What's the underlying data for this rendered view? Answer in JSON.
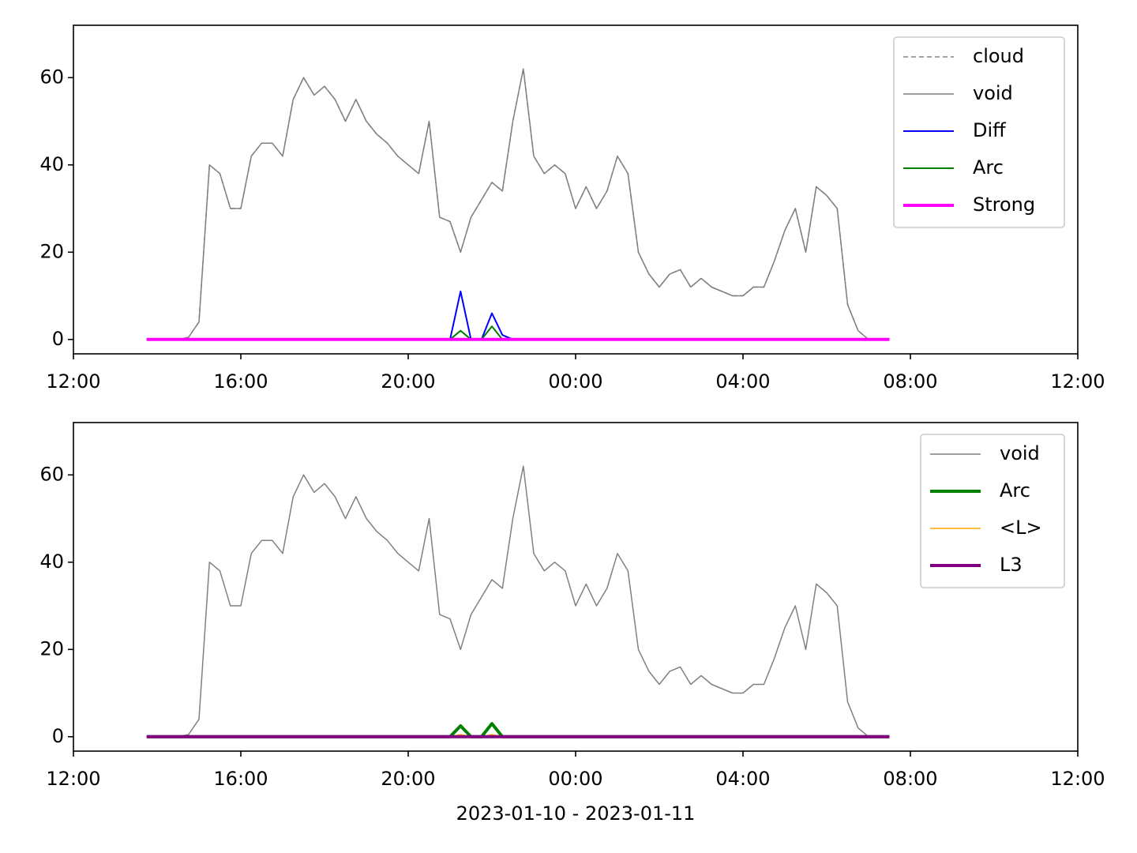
{
  "chart_data": [
    {
      "type": "line",
      "x": [
        13.75,
        14,
        14.25,
        14.5,
        14.75,
        15,
        15.25,
        15.5,
        15.75,
        16,
        16.25,
        16.5,
        16.75,
        17,
        17.25,
        17.5,
        17.75,
        18,
        18.25,
        18.5,
        18.75,
        19,
        19.25,
        19.5,
        19.75,
        20,
        20.25,
        20.5,
        20.75,
        21,
        21.25,
        21.5,
        21.75,
        22,
        22.25,
        22.5,
        22.75,
        23,
        23.25,
        23.5,
        23.75,
        24,
        24.25,
        24.5,
        24.75,
        25,
        25.25,
        25.5,
        25.75,
        26,
        26.25,
        26.5,
        26.75,
        27,
        27.25,
        27.5,
        27.75,
        28,
        28.25,
        28.5,
        28.75,
        29,
        29.25,
        29.5,
        29.75,
        30,
        30.25,
        30.5,
        30.75,
        31,
        31.25,
        31.5
      ],
      "series": [
        {
          "name": "cloud",
          "color": "#808080",
          "linewidth": 1.5,
          "linestyle": "dashed",
          "values": [
            0,
            0,
            0,
            0,
            0.5,
            4,
            40,
            38,
            30,
            30,
            42,
            45,
            45,
            42,
            55,
            60,
            56,
            58,
            55,
            50,
            55,
            50,
            47,
            45,
            42,
            40,
            38,
            50,
            28,
            27,
            20,
            28,
            32,
            36,
            34,
            50,
            62,
            42,
            38,
            40,
            38,
            30,
            35,
            30,
            34,
            42,
            38,
            20,
            15,
            12,
            15,
            16,
            12,
            14,
            12,
            11,
            10,
            10,
            12,
            12,
            18,
            25,
            30,
            20,
            35,
            33,
            30,
            8,
            2,
            0,
            0,
            0
          ]
        },
        {
          "name": "void",
          "color": "#808080",
          "linewidth": 1.5,
          "linestyle": "solid",
          "values": [
            0,
            0,
            0,
            0,
            0.5,
            4,
            40,
            38,
            30,
            30,
            42,
            45,
            45,
            42,
            55,
            60,
            56,
            58,
            55,
            50,
            55,
            50,
            47,
            45,
            42,
            40,
            38,
            50,
            28,
            27,
            20,
            28,
            32,
            36,
            34,
            50,
            62,
            42,
            38,
            40,
            38,
            30,
            35,
            30,
            34,
            42,
            38,
            20,
            15,
            12,
            15,
            16,
            12,
            14,
            12,
            11,
            10,
            10,
            12,
            12,
            18,
            25,
            30,
            20,
            35,
            33,
            30,
            8,
            2,
            0,
            0,
            0
          ]
        },
        {
          "name": "Diff",
          "color": "#0000ff",
          "linewidth": 2,
          "linestyle": "solid",
          "values": [
            0,
            0,
            0,
            0,
            0,
            0,
            0,
            0,
            0,
            0,
            0,
            0,
            0,
            0,
            0,
            0,
            0,
            0,
            0,
            0,
            0,
            0,
            0,
            0,
            0,
            0,
            0,
            0,
            0,
            0,
            11,
            0,
            0,
            6,
            1,
            0,
            0,
            0,
            0,
            0,
            0,
            0,
            0,
            0,
            0,
            0,
            0,
            0,
            0,
            0,
            0,
            0,
            0,
            0,
            0,
            0,
            0,
            0,
            0,
            0,
            0,
            0,
            0,
            0,
            0,
            0,
            0,
            0,
            0,
            0,
            0,
            0
          ]
        },
        {
          "name": "Arc",
          "color": "#008000",
          "linewidth": 2,
          "linestyle": "solid",
          "values": [
            0,
            0,
            0,
            0,
            0,
            0,
            0,
            0,
            0,
            0,
            0,
            0,
            0,
            0,
            0,
            0,
            0,
            0,
            0,
            0,
            0,
            0,
            0,
            0,
            0,
            0,
            0,
            0,
            0,
            0,
            2,
            0,
            0,
            3,
            0,
            0,
            0,
            0,
            0,
            0,
            0,
            0,
            0,
            0,
            0,
            0,
            0,
            0,
            0,
            0,
            0,
            0,
            0,
            0,
            0,
            0,
            0,
            0,
            0,
            0,
            0,
            0,
            0,
            0,
            0,
            0,
            0,
            0,
            0,
            0,
            0,
            0
          ]
        },
        {
          "name": "Strong",
          "color": "#ff00ff",
          "linewidth": 4,
          "linestyle": "solid",
          "values": [
            0,
            0,
            0,
            0,
            0,
            0,
            0,
            0,
            0,
            0,
            0,
            0,
            0,
            0,
            0,
            0,
            0,
            0,
            0,
            0,
            0,
            0,
            0,
            0,
            0,
            0,
            0,
            0,
            0,
            0,
            0,
            0,
            0,
            0,
            0,
            0,
            0,
            0,
            0,
            0,
            0,
            0,
            0,
            0,
            0,
            0,
            0,
            0,
            0,
            0,
            0,
            0,
            0,
            0,
            0,
            0,
            0,
            0,
            0,
            0,
            0,
            0,
            0,
            0,
            0,
            0,
            0,
            0,
            0,
            0,
            0,
            0
          ]
        }
      ],
      "xlim": [
        12,
        36
      ],
      "xticks": [
        {
          "value": 12,
          "label": "12:00"
        },
        {
          "value": 16,
          "label": "16:00"
        },
        {
          "value": 20,
          "label": "20:00"
        },
        {
          "value": 24,
          "label": "00:00"
        },
        {
          "value": 28,
          "label": "04:00"
        },
        {
          "value": 32,
          "label": "08:00"
        },
        {
          "value": 36,
          "label": "12:00"
        }
      ],
      "ylim": [
        -3.3,
        72
      ],
      "yticks": [
        0,
        20,
        40,
        60
      ],
      "legend": "upper right"
    },
    {
      "type": "line",
      "x": [
        13.75,
        14,
        14.25,
        14.5,
        14.75,
        15,
        15.25,
        15.5,
        15.75,
        16,
        16.25,
        16.5,
        16.75,
        17,
        17.25,
        17.5,
        17.75,
        18,
        18.25,
        18.5,
        18.75,
        19,
        19.25,
        19.5,
        19.75,
        20,
        20.25,
        20.5,
        20.75,
        21,
        21.25,
        21.5,
        21.75,
        22,
        22.25,
        22.5,
        22.75,
        23,
        23.25,
        23.5,
        23.75,
        24,
        24.25,
        24.5,
        24.75,
        25,
        25.25,
        25.5,
        25.75,
        26,
        26.25,
        26.5,
        26.75,
        27,
        27.25,
        27.5,
        27.75,
        28,
        28.25,
        28.5,
        28.75,
        29,
        29.25,
        29.5,
        29.75,
        30,
        30.25,
        30.5,
        30.75,
        31,
        31.25,
        31.5
      ],
      "series": [
        {
          "name": "void",
          "color": "#808080",
          "linewidth": 1.5,
          "linestyle": "solid",
          "values": [
            0,
            0,
            0,
            0,
            0.5,
            4,
            40,
            38,
            30,
            30,
            42,
            45,
            45,
            42,
            55,
            60,
            56,
            58,
            55,
            50,
            55,
            50,
            47,
            45,
            42,
            40,
            38,
            50,
            28,
            27,
            20,
            28,
            32,
            36,
            34,
            50,
            62,
            42,
            38,
            40,
            38,
            30,
            35,
            30,
            34,
            42,
            38,
            20,
            15,
            12,
            15,
            16,
            12,
            14,
            12,
            11,
            10,
            10,
            12,
            12,
            18,
            25,
            30,
            20,
            35,
            33,
            30,
            8,
            2,
            0,
            0,
            0
          ]
        },
        {
          "name": "Arc",
          "color": "#008000",
          "linewidth": 4,
          "linestyle": "solid",
          "values": [
            0,
            0,
            0,
            0,
            0,
            0,
            0,
            0,
            0,
            0,
            0,
            0,
            0,
            0,
            0,
            0,
            0,
            0,
            0,
            0,
            0,
            0,
            0,
            0,
            0,
            0,
            0,
            0,
            0,
            0,
            2.5,
            0,
            0,
            3,
            0,
            0,
            0,
            0,
            0,
            0,
            0,
            0,
            0,
            0,
            0,
            0,
            0,
            0,
            0,
            0,
            0,
            0,
            0,
            0,
            0,
            0,
            0,
            0,
            0,
            0,
            0,
            0,
            0,
            0,
            0,
            0,
            0,
            0,
            0,
            0,
            0,
            0
          ]
        },
        {
          "name": "<L>",
          "color": "#ffa500",
          "linewidth": 1.5,
          "linestyle": "solid",
          "values": [
            0,
            0,
            0,
            0,
            0,
            0,
            0,
            0,
            0,
            0,
            0,
            0,
            0,
            0,
            0,
            0,
            0,
            0,
            0,
            0,
            0,
            0,
            0,
            0,
            0,
            0,
            0,
            0,
            0,
            0,
            0.5,
            0,
            0,
            0.5,
            0,
            0,
            0,
            0,
            0,
            0,
            0,
            0,
            0,
            0,
            0,
            0,
            0,
            0,
            0,
            0,
            0,
            0,
            0,
            0,
            0,
            0,
            0,
            0,
            0,
            0,
            0,
            0,
            0,
            0,
            0,
            0,
            0,
            0,
            0,
            0,
            0,
            0
          ]
        },
        {
          "name": "L3",
          "color": "#800080",
          "linewidth": 4,
          "linestyle": "solid",
          "values": [
            0,
            0,
            0,
            0,
            0,
            0,
            0,
            0,
            0,
            0,
            0,
            0,
            0,
            0,
            0,
            0,
            0,
            0,
            0,
            0,
            0,
            0,
            0,
            0,
            0,
            0,
            0,
            0,
            0,
            0,
            0,
            0,
            0,
            0,
            0,
            0,
            0,
            0,
            0,
            0,
            0,
            0,
            0,
            0,
            0,
            0,
            0,
            0,
            0,
            0,
            0,
            0,
            0,
            0,
            0,
            0,
            0,
            0,
            0,
            0,
            0,
            0,
            0,
            0,
            0,
            0,
            0,
            0,
            0,
            0,
            0,
            0
          ]
        }
      ],
      "xlim": [
        12,
        36
      ],
      "xticks": [
        {
          "value": 12,
          "label": "12:00"
        },
        {
          "value": 16,
          "label": "16:00"
        },
        {
          "value": 20,
          "label": "20:00"
        },
        {
          "value": 24,
          "label": "00:00"
        },
        {
          "value": 28,
          "label": "04:00"
        },
        {
          "value": 32,
          "label": "08:00"
        },
        {
          "value": 36,
          "label": "12:00"
        }
      ],
      "ylim": [
        -3.3,
        72
      ],
      "yticks": [
        0,
        20,
        40,
        60
      ],
      "legend": "upper right",
      "xlabel": "2023-01-10 - 2023-01-11"
    }
  ]
}
